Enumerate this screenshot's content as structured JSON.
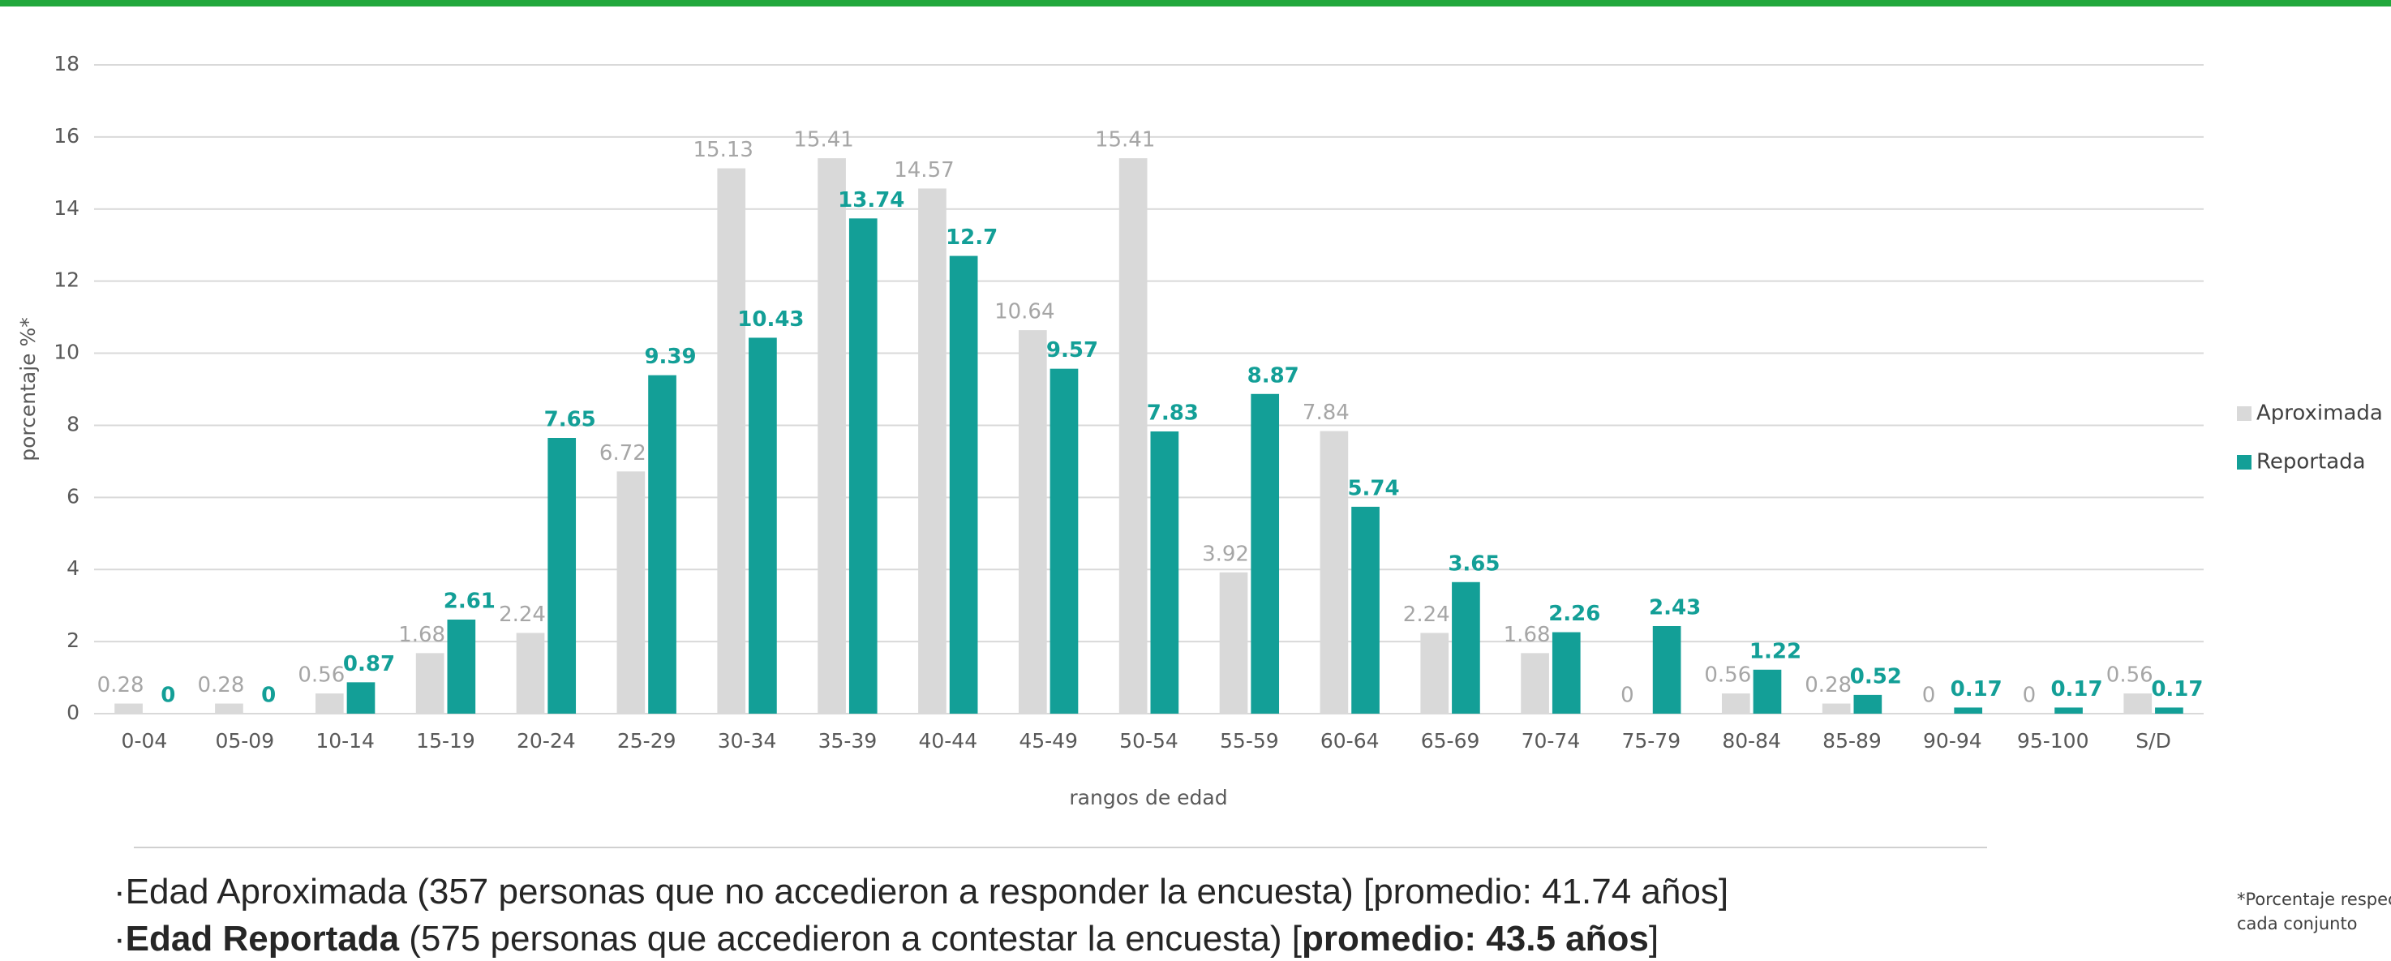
{
  "chart_data": {
    "type": "bar",
    "x_label": "rangos de edad",
    "y_label": "porcentaje %*",
    "categories": [
      "0-04",
      "05-09",
      "10-14",
      "15-19",
      "20-24",
      "25-29",
      "30-34",
      "35-39",
      "40-44",
      "45-49",
      "50-54",
      "55-59",
      "60-64",
      "65-69",
      "70-74",
      "75-79",
      "80-84",
      "85-89",
      "90-94",
      "95-100",
      "S/D"
    ],
    "series": [
      {
        "name": "Aproximada",
        "color": "#d9d9d9",
        "label_color": "#a6a6a6",
        "values": [
          0.28,
          0.28,
          0.56,
          1.68,
          2.24,
          6.72,
          15.13,
          15.41,
          14.57,
          10.64,
          15.41,
          3.92,
          7.84,
          2.24,
          1.68,
          0,
          0.56,
          0.28,
          0,
          0,
          0.56
        ]
      },
      {
        "name": "Reportada",
        "color": "#139f97",
        "label_color": "#139f97",
        "values": [
          0,
          0,
          0.87,
          2.61,
          7.65,
          9.39,
          10.43,
          13.74,
          12.7,
          9.57,
          7.83,
          8.87,
          5.74,
          3.65,
          2.26,
          2.43,
          1.22,
          0.52,
          0.17,
          0.17,
          0.17
        ]
      }
    ],
    "ylim": [
      0,
      18
    ],
    "yticks": [
      0,
      2,
      4,
      6,
      8,
      10,
      12,
      14,
      16,
      18
    ],
    "grid": true,
    "legend": "right",
    "footnote": [
      "*Porcentaje respecto del total d",
      "cada conjunto"
    ],
    "notes": [
      [
        {
          "text": "·Edad Aproximada (357 personas que no accedieron a responder la encuesta) [promedio: 41.74 años]",
          "bold": false
        }
      ],
      [
        {
          "text": "·",
          "bold": false
        },
        {
          "text": "Edad Reportada",
          "bold": true
        },
        {
          "text": " (575 personas que accedieron a contestar la encuesta) [",
          "bold": false
        },
        {
          "text": "promedio: 43.5 años",
          "bold": true
        },
        {
          "text": "]",
          "bold": false
        }
      ]
    ]
  }
}
